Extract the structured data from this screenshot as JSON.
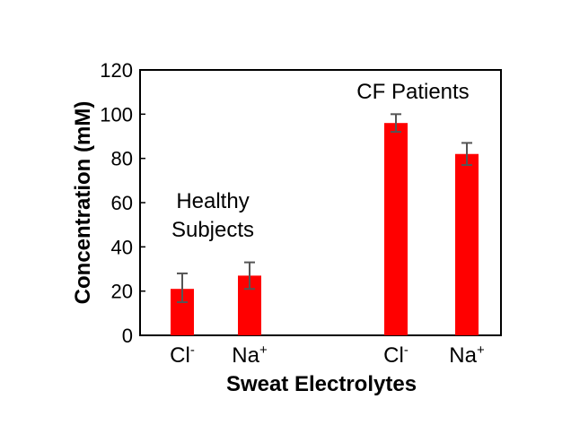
{
  "chart_data": {
    "type": "bar",
    "title": "",
    "xlabel": "Sweat Electrolytes",
    "ylabel": "Concentration (mM)",
    "ylim": [
      0,
      120
    ],
    "yticks": [
      "0",
      "20",
      "40",
      "60",
      "80",
      "100",
      "120"
    ],
    "categories": [
      {
        "base": "Cl",
        "sup": "-"
      },
      {
        "base": "Na",
        "sup": "+"
      },
      {
        "base": "Cl",
        "sup": "-"
      },
      {
        "base": "Na",
        "sup": "+"
      }
    ],
    "values": [
      21,
      27,
      96,
      82
    ],
    "error_low": [
      6,
      6,
      4,
      5
    ],
    "error_high": [
      7,
      6,
      4,
      5
    ],
    "bar_color": "#ff0000",
    "error_color": "#555555",
    "annotations": [
      {
        "lines": [
          "Healthy",
          "Subjects"
        ]
      },
      {
        "lines": [
          "CF Patients"
        ]
      }
    ]
  }
}
